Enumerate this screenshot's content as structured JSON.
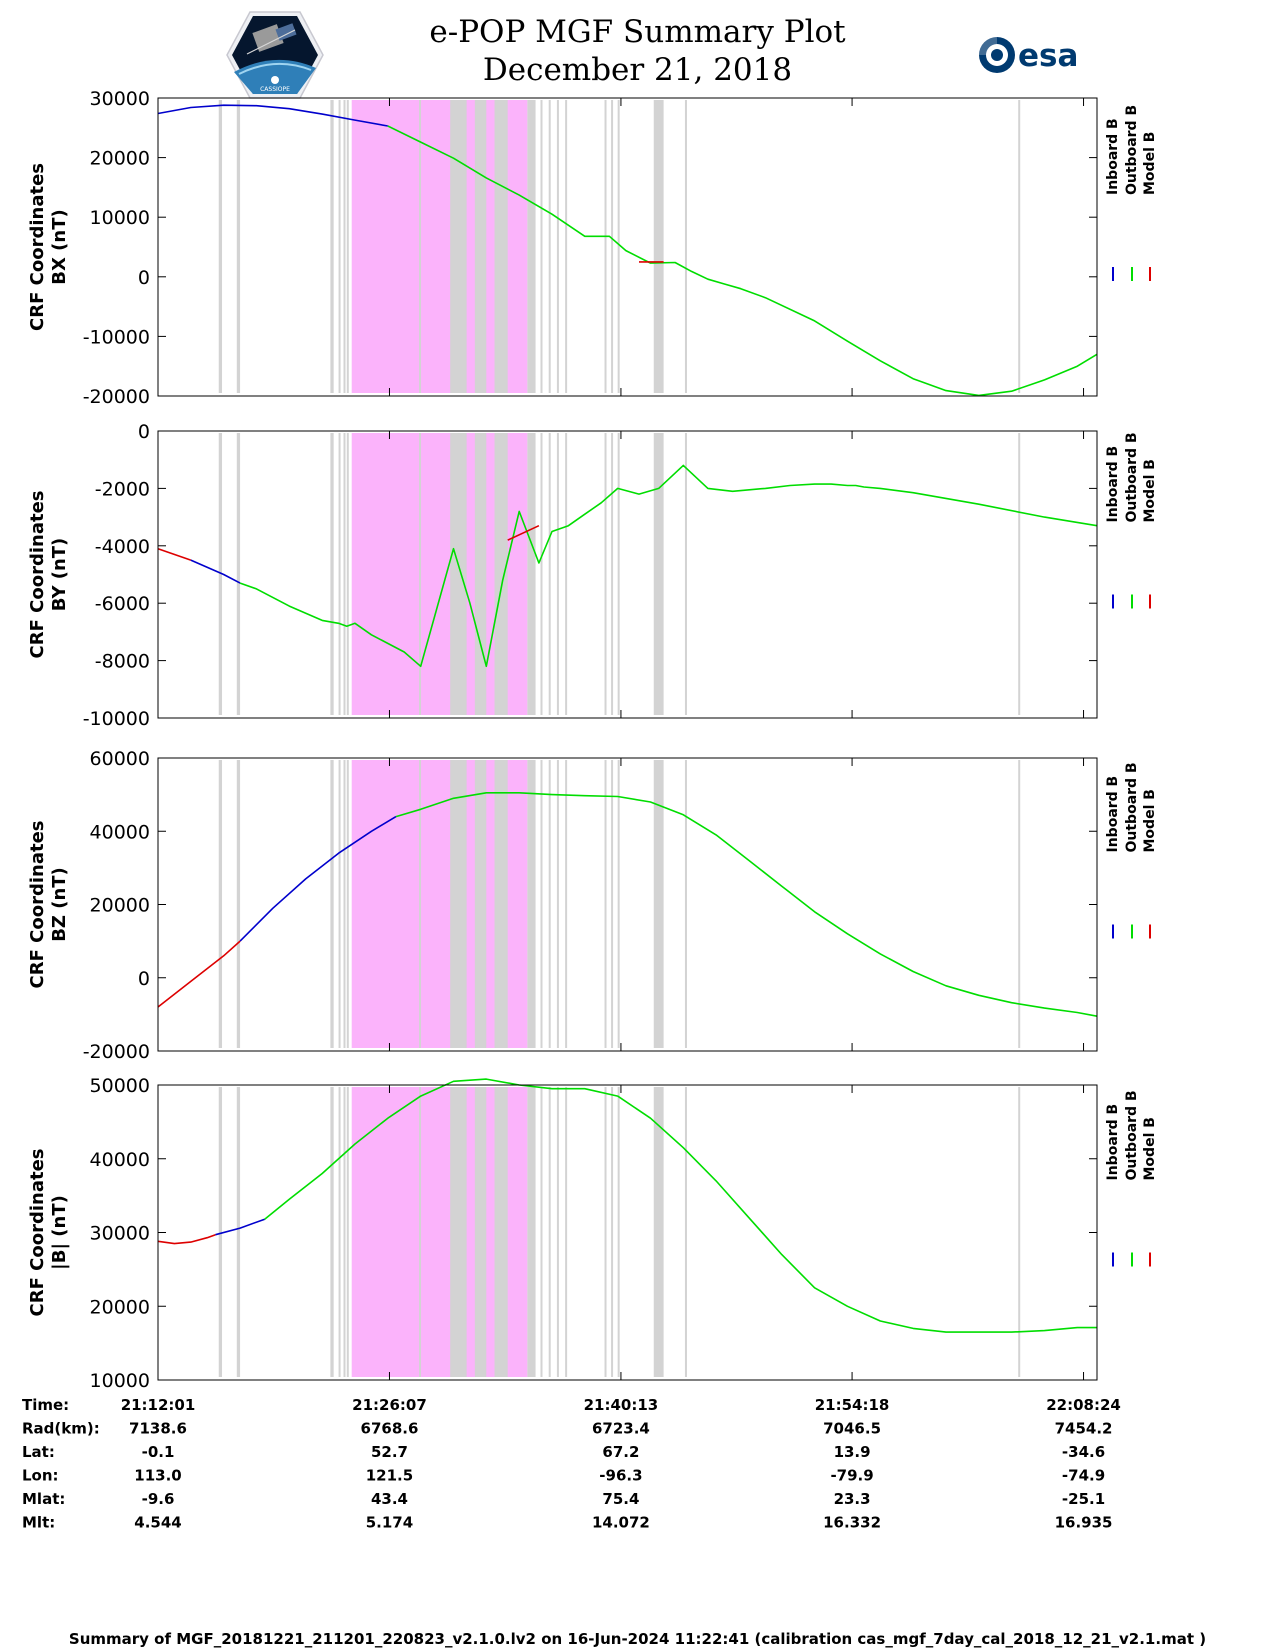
{
  "header": {
    "title": "e-POP MGF Summary Plot",
    "date": "December 21, 2018",
    "esa_logo": "esa",
    "epop_logo_text": "CASSIOPE"
  },
  "colors": {
    "inboard": "#0000cc",
    "outboard": "#00dd00",
    "model": "#dd0000",
    "magenta_region": "#fbb3fb",
    "gray_region": "#d3d3d3"
  },
  "legend": [
    "Inboard B",
    "Outboard B",
    "Model B"
  ],
  "chart_data": [
    {
      "type": "line",
      "ylabel": [
        "CRF Coordinates",
        "BX (nT)"
      ],
      "ylim": [
        -20000,
        30000
      ],
      "yticks": [
        30000,
        20000,
        10000,
        0,
        -10000,
        -20000
      ],
      "x_range_min": [
        0,
        57.2
      ],
      "series": [
        {
          "name": "Inboard B",
          "x": [
            0,
            2,
            4,
            6,
            8,
            10,
            12,
            14
          ],
          "y": [
            27400,
            28400,
            28800,
            28700,
            28200,
            27300,
            26300,
            25300
          ]
        },
        {
          "name": "Outboard B",
          "x": [
            14,
            16,
            18,
            20,
            22,
            24,
            26,
            27.5,
            28.5,
            30,
            31.5,
            32.5,
            33.5,
            34.5,
            35.5,
            37,
            40,
            42,
            44,
            46,
            48,
            50,
            52,
            54,
            56,
            57.2
          ],
          "y": [
            25300,
            22600,
            19900,
            16600,
            13700,
            10500,
            6800,
            6800,
            4400,
            2300,
            2400,
            900,
            -400,
            -1200,
            -2000,
            -3500,
            -7400,
            -10800,
            -14100,
            -17100,
            -19100,
            -19900,
            -19200,
            -17300,
            -15000,
            -13000
          ]
        },
        {
          "name": "Model B",
          "x": [
            29.3,
            30.8
          ],
          "y": [
            2500,
            2500
          ]
        }
      ]
    },
    {
      "type": "line",
      "ylabel": [
        "CRF Coordinates",
        "BY (nT)"
      ],
      "ylim": [
        -10000,
        0
      ],
      "yticks": [
        0,
        -2000,
        -4000,
        -6000,
        -8000,
        -10000
      ],
      "x_range_min": [
        0,
        57.2
      ],
      "series": [
        {
          "name": "Model B",
          "x": [
            0,
            2
          ],
          "y": [
            -4100,
            -4500
          ]
        },
        {
          "name": "Inboard B",
          "x": [
            2,
            4,
            5
          ],
          "y": [
            -4500,
            -5000,
            -5300
          ]
        },
        {
          "name": "Outboard B",
          "x": [
            5,
            6,
            8,
            10,
            11,
            11.5,
            12,
            13,
            15,
            16,
            18,
            19,
            20,
            21,
            22,
            23.2,
            24,
            25,
            26,
            27,
            28,
            29.3,
            30.5,
            32,
            33.5,
            35,
            37,
            38.5,
            40,
            41,
            42,
            42.5,
            43,
            44,
            46,
            50,
            54,
            57.2
          ],
          "y": [
            -5300,
            -5500,
            -6100,
            -6600,
            -6700,
            -6800,
            -6700,
            -7100,
            -7700,
            -8200,
            -4100,
            -6000,
            -8200,
            -5200,
            -2800,
            -4600,
            -3500,
            -3300,
            -2900,
            -2500,
            -2000,
            -2200,
            -2000,
            -1200,
            -2000,
            -2100,
            -2000,
            -1900,
            -1850,
            -1850,
            -1900,
            -1900,
            -1950,
            -2000,
            -2150,
            -2550,
            -3000,
            -3300
          ]
        },
        {
          "name": "Model B",
          "x": [
            21.3,
            23.2
          ],
          "y": [
            -3800,
            -3300
          ]
        }
      ]
    },
    {
      "type": "line",
      "ylabel": [
        "CRF Coordinates",
        "BZ (nT)"
      ],
      "ylim": [
        -20000,
        60000
      ],
      "yticks": [
        60000,
        40000,
        20000,
        0,
        -20000
      ],
      "x_range_min": [
        0,
        57.2
      ],
      "series": [
        {
          "name": "Model B",
          "x": [
            0,
            2,
            4,
            5
          ],
          "y": [
            -8000,
            -1000,
            6000,
            10000
          ]
        },
        {
          "name": "Inboard B",
          "x": [
            5,
            7,
            9,
            11,
            13,
            14.5
          ],
          "y": [
            10000,
            19000,
            27000,
            34000,
            40000,
            44000
          ]
        },
        {
          "name": "Outboard B",
          "x": [
            14.5,
            16,
            18,
            20,
            22,
            24,
            26,
            28,
            30,
            32,
            34,
            36,
            38,
            40,
            42,
            44,
            46,
            48,
            50,
            52,
            54,
            56,
            57.2
          ],
          "y": [
            44000,
            46000,
            49000,
            50500,
            50500,
            50000,
            49700,
            49500,
            48000,
            44500,
            39000,
            32000,
            25000,
            18000,
            12000,
            6500,
            1700,
            -2200,
            -4800,
            -6800,
            -8300,
            -9500,
            -10500
          ]
        }
      ]
    },
    {
      "type": "line",
      "ylabel": [
        "CRF Coordinates",
        "|B| (nT)"
      ],
      "ylim": [
        10000,
        50000
      ],
      "yticks": [
        50000,
        40000,
        30000,
        20000,
        10000
      ],
      "x_range_min": [
        0,
        57.2
      ],
      "series": [
        {
          "name": "Model B",
          "x": [
            0,
            1,
            2,
            3,
            3.5
          ],
          "y": [
            28800,
            28500,
            28700,
            29300,
            29700
          ]
        },
        {
          "name": "Inboard B",
          "x": [
            3.5,
            5,
            6.5
          ],
          "y": [
            29700,
            30600,
            31800
          ]
        },
        {
          "name": "Outboard B",
          "x": [
            6.5,
            8,
            10,
            12,
            14,
            16,
            18,
            20,
            22,
            24,
            26,
            28,
            30,
            32,
            34,
            36,
            38,
            40,
            42,
            44,
            46,
            48,
            50,
            52,
            54,
            56,
            57.2
          ],
          "y": [
            31800,
            34500,
            38000,
            42000,
            45500,
            48500,
            50500,
            50800,
            50000,
            49500,
            49500,
            48500,
            45500,
            41500,
            37000,
            32000,
            27000,
            22500,
            20000,
            18000,
            17000,
            16500,
            16500,
            16500,
            16700,
            17100,
            17100
          ]
        }
      ]
    }
  ],
  "regions": {
    "magenta": [
      [
        11.8,
        22.5
      ]
    ],
    "gray": [
      [
        3.7,
        3.9
      ],
      [
        4.8,
        5.0
      ],
      [
        10.5,
        10.7
      ],
      [
        11.0,
        11.1
      ],
      [
        11.3,
        11.4
      ],
      [
        11.5,
        11.6
      ],
      [
        15.9,
        16.0
      ],
      [
        17.8,
        18.8
      ],
      [
        19.3,
        20.0
      ],
      [
        20.5,
        21.3
      ],
      [
        22.5,
        23.0
      ],
      [
        23.3,
        23.4
      ],
      [
        23.8,
        23.9
      ],
      [
        24.3,
        24.4
      ],
      [
        24.8,
        24.9
      ],
      [
        27.2,
        27.3
      ],
      [
        27.6,
        27.7
      ],
      [
        28.0,
        28.1
      ],
      [
        30.2,
        30.8
      ],
      [
        32.1,
        32.2
      ],
      [
        52.4,
        52.5
      ]
    ]
  },
  "x_axis": {
    "tick_positions_min": [
      0,
      14.1,
      28.2,
      42.28,
      56.38
    ],
    "row_labels": [
      "Time:",
      "Rad(km):",
      "Lat:",
      "Lon:",
      "Mlat:",
      "Mlt:"
    ],
    "columns": [
      [
        "21:12:01",
        "7138.6",
        "-0.1",
        "113.0",
        "-9.6",
        "4.544"
      ],
      [
        "21:26:07",
        "6768.6",
        "52.7",
        "121.5",
        "43.4",
        "5.174"
      ],
      [
        "21:40:13",
        "6723.4",
        "67.2",
        "-96.3",
        "75.4",
        "14.072"
      ],
      [
        "21:54:18",
        "7046.5",
        "13.9",
        "-79.9",
        "23.3",
        "16.332"
      ],
      [
        "22:08:24",
        "7454.2",
        "-34.6",
        "-74.9",
        "-25.1",
        "16.935"
      ]
    ]
  },
  "footer": "Summary of MGF_20181221_211201_220823_v2.1.0.lv2 on 16-Jun-2024 11:22:41 (calibration cas_mgf_7day_cal_2018_12_21_v2.1.mat )"
}
